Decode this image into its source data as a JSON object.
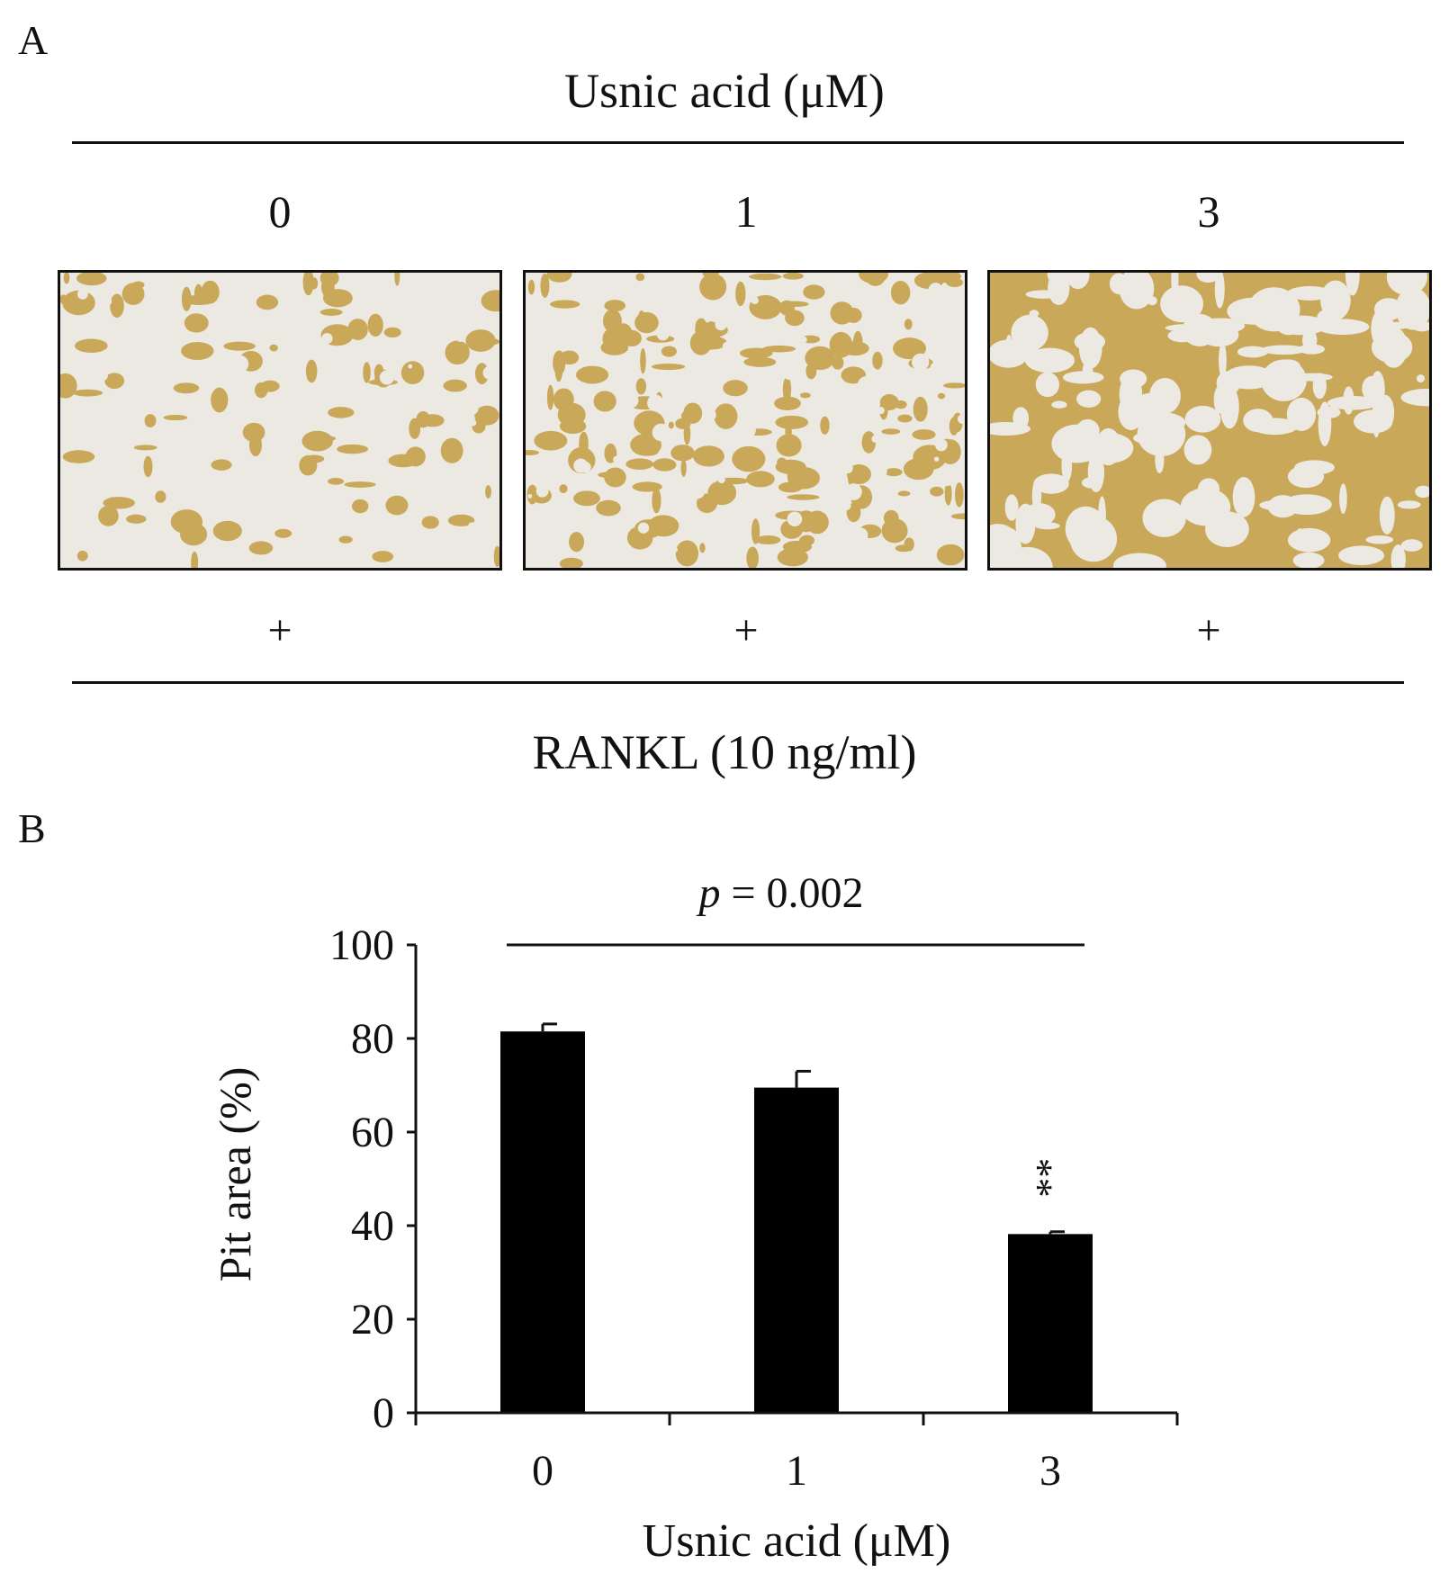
{
  "panel_a": {
    "label": "A",
    "treatment_label": "Usnic acid (μM)",
    "doses": [
      "0",
      "1",
      "3"
    ],
    "rankl_marks": [
      "+",
      "+",
      "+"
    ],
    "rankl_label": "RANKL (10 ng/ml)",
    "image_colors": {
      "background": "#ece9e2",
      "stain": "#c9a85a"
    }
  },
  "panel_b": {
    "label": "B",
    "stat_p_symbol": "p",
    "stat_p_rest": " = 0.002",
    "significance_mark": "**"
  },
  "chart_data": {
    "type": "bar",
    "categories": [
      "0",
      "1",
      "3"
    ],
    "values": [
      81.5,
      69.5,
      38.2
    ],
    "errors": [
      1.6,
      3.5,
      0.5
    ],
    "xlabel": "Usnic acid (μM)",
    "ylabel": "Pit area (%)",
    "ylim": [
      0,
      100
    ],
    "yticks": [
      0,
      20,
      40,
      60,
      80,
      100
    ],
    "bar_color": "#000000",
    "grid": false,
    "significance": {
      "category": "3",
      "mark": "**"
    },
    "comparison": {
      "label": "p = 0.002",
      "from": "0",
      "to": "3"
    }
  }
}
